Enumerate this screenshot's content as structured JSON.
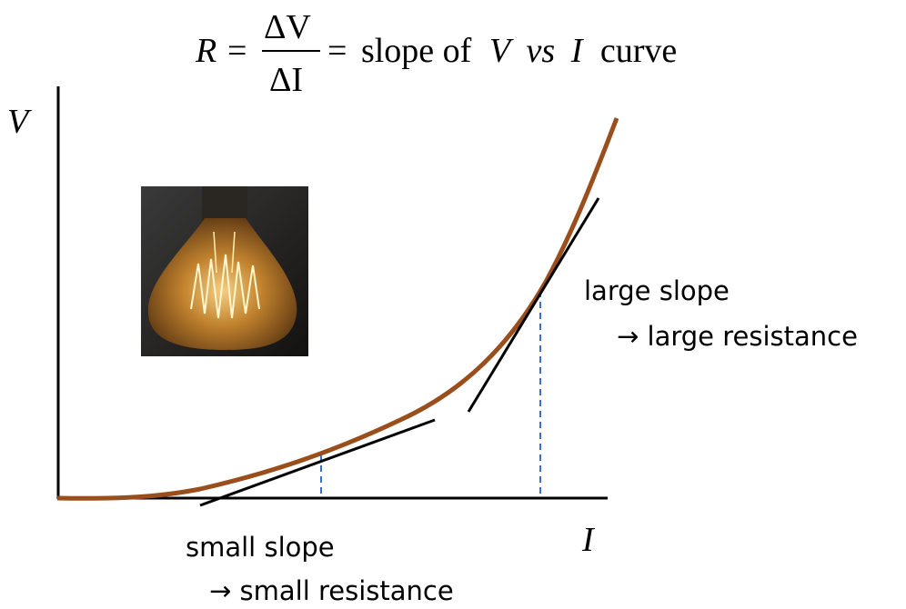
{
  "formula": {
    "lhs": "R",
    "equals": "=",
    "numerator": "ΔV",
    "denominator": "ΔI",
    "rhs_prefix": "slope of",
    "var_v": "V",
    "vs": "vs",
    "var_i": "I",
    "rhs_suffix": "curve"
  },
  "axes": {
    "y_label": "V",
    "x_label": "I"
  },
  "annotations": [
    {
      "line1": "small slope",
      "line2": "→ small resistance"
    },
    {
      "line1": "large slope",
      "line2": "→ large resistance"
    }
  ]
}
